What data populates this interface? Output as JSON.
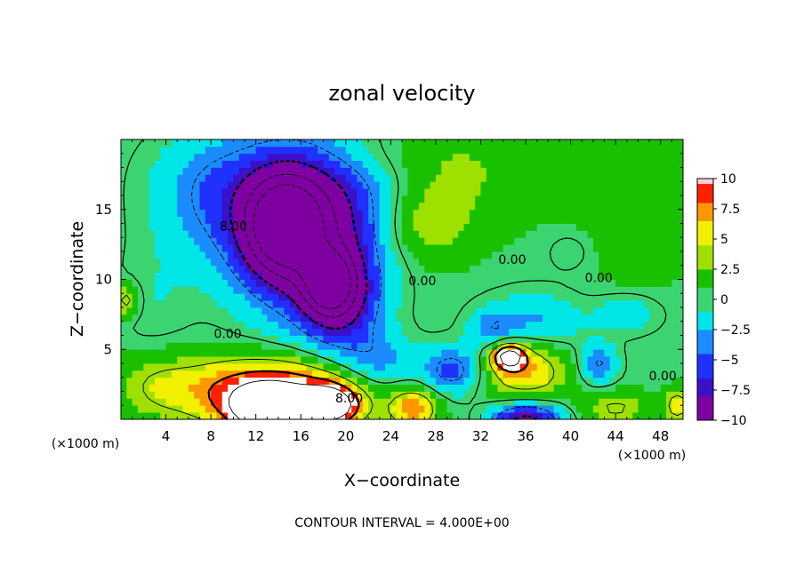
{
  "chart_data": {
    "type": "heatmap",
    "title": "zonal velocity",
    "xlabel": "X−coordinate",
    "ylabel": "Z−coordinate",
    "x_unit_left": "(×1000 m)",
    "x_unit_right": "(×1000 m)",
    "xlim": [
      0,
      50
    ],
    "ylim": [
      0,
      20
    ],
    "x_ticks": [
      4,
      8,
      12,
      16,
      20,
      24,
      28,
      32,
      36,
      40,
      44,
      48
    ],
    "y_ticks": [
      5,
      10,
      15
    ],
    "footer": "CONTOUR INTERVAL = 4.000E+00",
    "colorbar": {
      "range": [
        -10,
        10
      ],
      "ticks": [
        10,
        7.5,
        5,
        2.5,
        0,
        -2.5,
        -5,
        -7.5,
        -10
      ],
      "tick_labels": [
        "10",
        "7.5",
        "5",
        "2.5",
        "0",
        "−2.5",
        "−5",
        "−7.5",
        "−10"
      ],
      "stops": [
        "#7f00a0",
        "#3a10c8",
        "#2030ff",
        "#1a8cff",
        "#00e6e6",
        "#3cd470",
        "#18c000",
        "#9ee000",
        "#f0f000",
        "#ff9800",
        "#ff2000",
        "#ff9a9a",
        "#ffffff"
      ]
    },
    "contour_labels": [
      {
        "text": "8.00",
        "x": 10.0,
        "y": 13.5
      },
      {
        "text": "0.00",
        "x": 26.8,
        "y": 9.6
      },
      {
        "text": "0.00",
        "x": 34.8,
        "y": 11.1
      },
      {
        "text": "0.00",
        "x": 42.5,
        "y": 9.8
      },
      {
        "text": "0.00",
        "x": 9.5,
        "y": 5.8
      },
      {
        "text": "8.00",
        "x": 20.3,
        "y": 1.2
      },
      {
        "text": "0.00",
        "x": 48.2,
        "y": 2.8
      }
    ],
    "features": [
      {
        "x": 14.5,
        "y": 13.8,
        "value": -16,
        "sx": 2.2,
        "sy": 2.2
      },
      {
        "x": 18.5,
        "y": 9.8,
        "value": -14,
        "sx": 1.4,
        "sy": 1.4
      },
      {
        "x": 16.0,
        "y": 13.0,
        "value": -9,
        "sx": 4.5,
        "sy": 4.0
      },
      {
        "x": 19.5,
        "y": 8.5,
        "value": -8,
        "sx": 2.5,
        "sy": 2.5
      },
      {
        "x": 16.0,
        "y": 16.5,
        "value": -5,
        "sx": 7.0,
        "sy": 3.5
      },
      {
        "x": 7.0,
        "y": 16.5,
        "value": -2,
        "sx": 3.0,
        "sy": 3.0
      },
      {
        "x": 3.0,
        "y": 8.0,
        "value": -1.5,
        "sx": 2.5,
        "sy": 3.0
      },
      {
        "x": 14.0,
        "y": 1.5,
        "value": 9,
        "sx": 5.0,
        "sy": 1.6
      },
      {
        "x": 13.0,
        "y": 0.6,
        "value": 14,
        "sx": 2.0,
        "sy": 1.0
      },
      {
        "x": 18.5,
        "y": 1.0,
        "value": 14,
        "sx": 1.7,
        "sy": 0.9
      },
      {
        "x": 12.0,
        "y": 2.5,
        "value": 4,
        "sx": 6.0,
        "sy": 1.6
      },
      {
        "x": 3.0,
        "y": 2.5,
        "value": 2.5,
        "sx": 2.5,
        "sy": 1.8
      },
      {
        "x": 27.0,
        "y": 14.0,
        "value": 4,
        "sx": 3.0,
        "sy": 2.0
      },
      {
        "x": 30.0,
        "y": 18.0,
        "value": 2.5,
        "sx": 5.0,
        "sy": 2.5
      },
      {
        "x": 20.0,
        "y": 19.0,
        "value": 1.5,
        "sx": 5.0,
        "sy": 1.5
      },
      {
        "x": 46.0,
        "y": 17.0,
        "value": 2,
        "sx": 4.0,
        "sy": 2.5
      },
      {
        "x": 46.0,
        "y": 12.5,
        "value": 1.5,
        "sx": 3.0,
        "sy": 2.0
      },
      {
        "x": 34.5,
        "y": 4.5,
        "value": 13,
        "sx": 1.0,
        "sy": 0.6
      },
      {
        "x": 36.0,
        "y": 3.5,
        "value": 6,
        "sx": 2.5,
        "sy": 1.5
      },
      {
        "x": 26.0,
        "y": 0.8,
        "value": 7,
        "sx": 1.5,
        "sy": 1.0
      },
      {
        "x": 29.5,
        "y": 3.5,
        "value": -6,
        "sx": 1.8,
        "sy": 1.2
      },
      {
        "x": 23.0,
        "y": 4.0,
        "value": -4,
        "sx": 2.5,
        "sy": 1.5
      },
      {
        "x": 36.0,
        "y": 0.0,
        "value": -10,
        "sx": 2.2,
        "sy": 0.9
      },
      {
        "x": 42.5,
        "y": 4.0,
        "value": -5,
        "sx": 1.2,
        "sy": 1.0
      },
      {
        "x": 37.0,
        "y": 7.0,
        "value": -3.5,
        "sx": 3.0,
        "sy": 1.5
      },
      {
        "x": 33.0,
        "y": 6.5,
        "value": -3.5,
        "sx": 1.5,
        "sy": 1.0
      },
      {
        "x": 45.0,
        "y": 7.5,
        "value": -3,
        "sx": 2.0,
        "sy": 1.0
      },
      {
        "x": 40.0,
        "y": 12.0,
        "value": -1.5,
        "sx": 1.5,
        "sy": 1.0
      },
      {
        "x": 0.5,
        "y": 8.5,
        "value": 5,
        "sx": 0.8,
        "sy": 0.8
      },
      {
        "x": 44.0,
        "y": 0.8,
        "value": 4,
        "sx": 2.0,
        "sy": 0.8
      },
      {
        "x": 49.5,
        "y": 1.0,
        "value": 5,
        "sx": 0.8,
        "sy": 0.8
      }
    ]
  }
}
